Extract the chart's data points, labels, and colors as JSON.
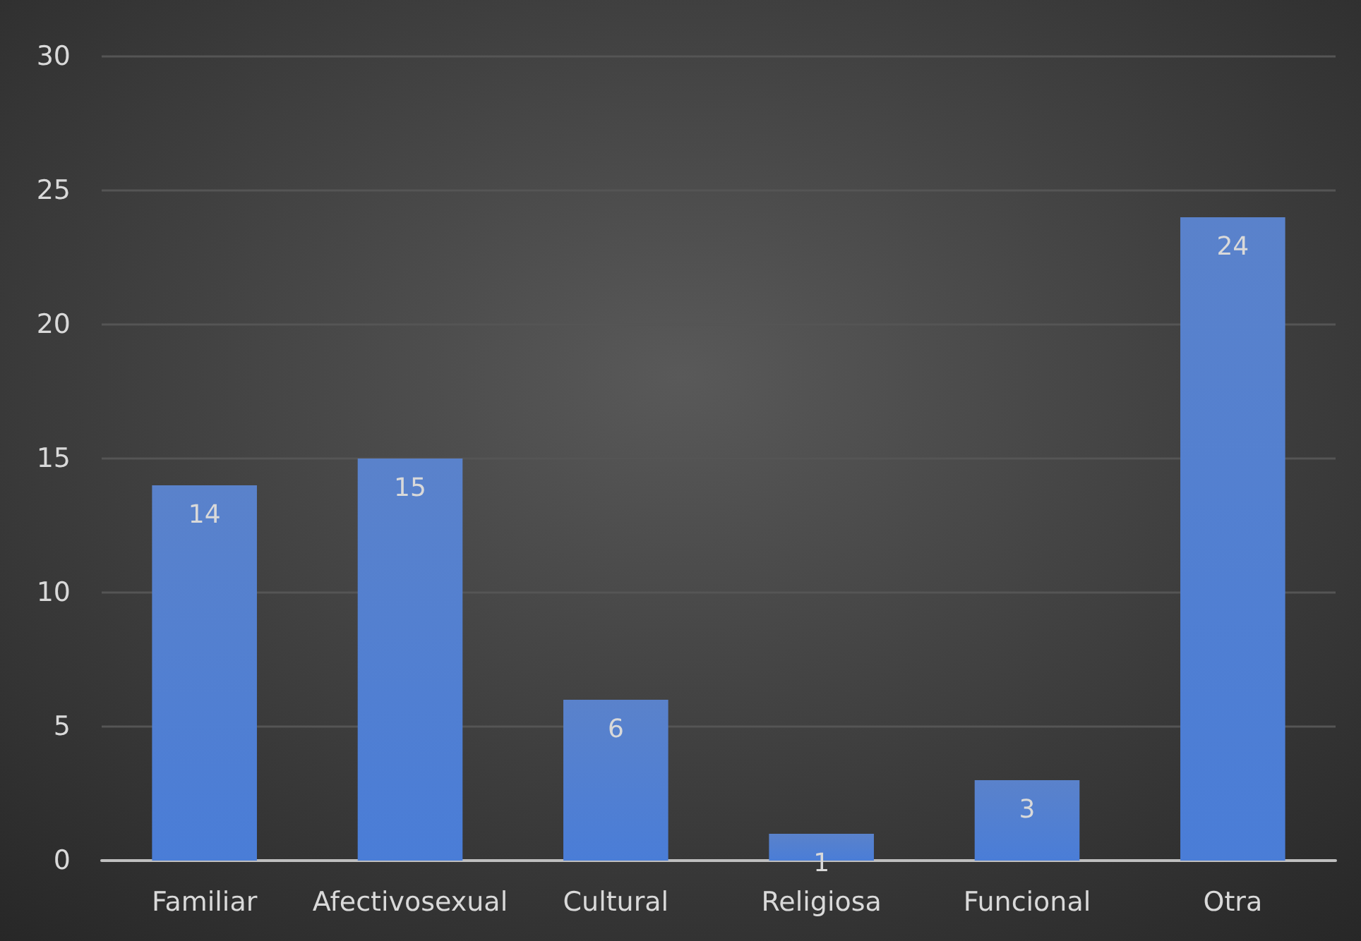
{
  "chart_data": {
    "type": "bar",
    "categories": [
      "Familiar",
      "Afectivosexual",
      "Cultural",
      "Religiosa",
      "Funcional",
      "Otra"
    ],
    "values": [
      14,
      15,
      6,
      1,
      3,
      24
    ],
    "color": "#4472c4",
    "ylim": [
      0,
      30
    ],
    "yticks": [
      0,
      5,
      10,
      15,
      20,
      25,
      30
    ],
    "grid": "y",
    "data_labels": true
  }
}
